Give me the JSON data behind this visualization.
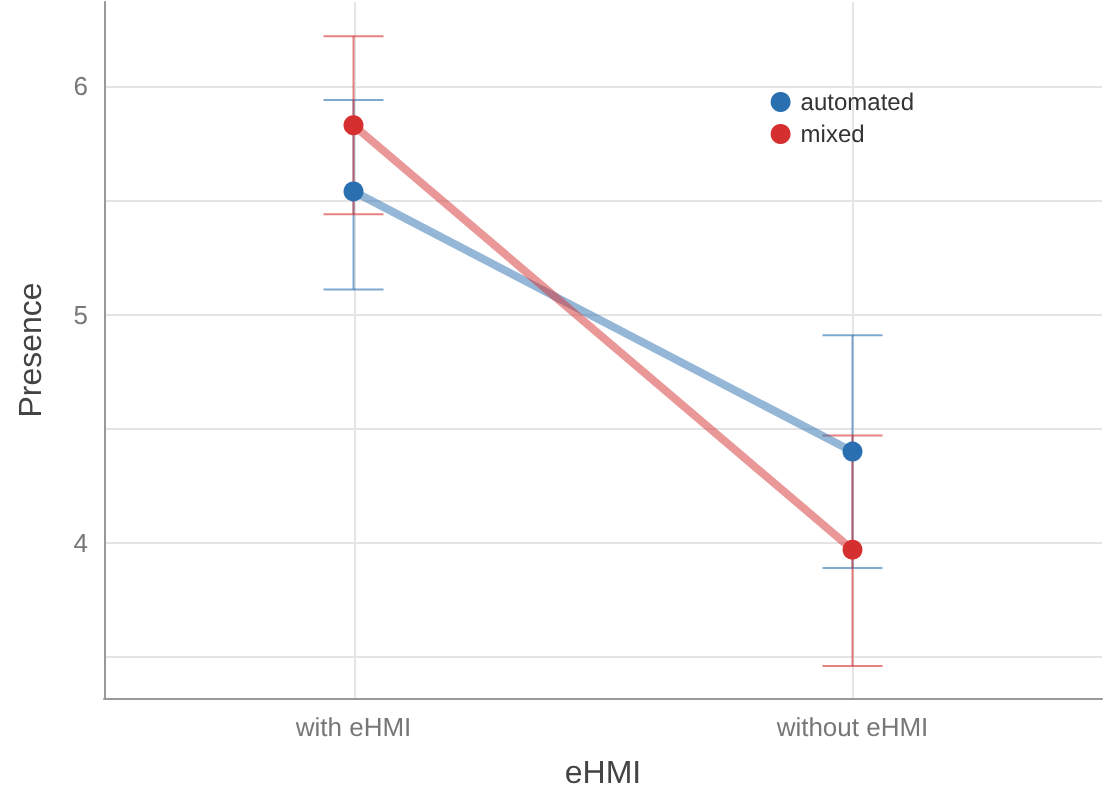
{
  "chart_data": {
    "type": "line",
    "xlabel": "eHMI",
    "ylabel": "Presence",
    "categories": [
      "with eHMI",
      "without eHMI"
    ],
    "series": [
      {
        "name": "automated",
        "color": "#2a6fb0",
        "values": [
          5.54,
          4.4
        ],
        "errors": [
          [
            5.11,
            5.94
          ],
          [
            3.89,
            4.91
          ]
        ]
      },
      {
        "name": "mixed",
        "color": "#d62f2f",
        "values": [
          5.83,
          3.97
        ],
        "errors": [
          [
            5.44,
            6.22
          ],
          [
            3.46,
            4.47
          ]
        ]
      }
    ],
    "ylim": [
      3.32,
      6.37
    ],
    "yticks": [
      {
        "value": 3.5,
        "label": null
      },
      4,
      {
        "value": 4.5,
        "label": null
      },
      5,
      {
        "value": 5.5,
        "label": null
      },
      6
    ],
    "grid": true,
    "legend": "top right",
    "marker": "circle",
    "line_style": "solid"
  }
}
